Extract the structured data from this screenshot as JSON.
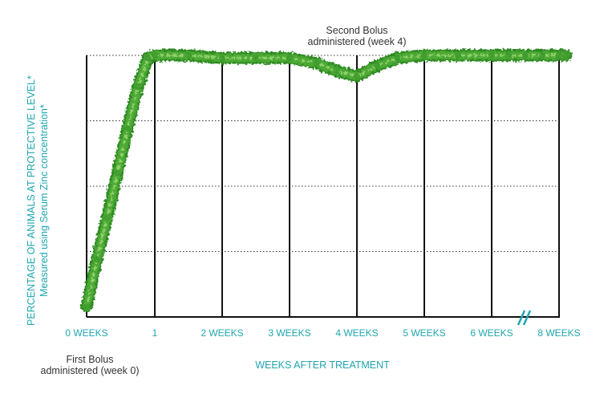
{
  "chart_data": {
    "type": "line",
    "x_tick_labels": [
      "0 WEEKS",
      "1",
      "2 WEEKS",
      "3 WEEKS",
      "4 WEEKS",
      "5 WEEKS",
      "6 WEEKS",
      "8 WEEKS"
    ],
    "x": [
      0,
      1,
      2,
      3,
      4,
      5,
      6,
      8
    ],
    "xlabel": "WEEKS AFTER TREATMENT",
    "ylabel_line1": "PERCENTAGE OF ANIMALS AT PROTECTIVE LEVEL*",
    "ylabel_line2": "Measured using Serum Zinc concentration*",
    "ylim": [
      0,
      100
    ],
    "y_gridlines": [
      25,
      50,
      75,
      100
    ],
    "grid": true,
    "axis_break_between": [
      6,
      8
    ],
    "series": [
      {
        "color": "#4da934",
        "points": [
          [
            0,
            4
          ],
          [
            0.15,
            22
          ],
          [
            0.3,
            38
          ],
          [
            0.45,
            55
          ],
          [
            0.6,
            72
          ],
          [
            0.75,
            88
          ],
          [
            0.9,
            99
          ],
          [
            1.0,
            100
          ],
          [
            1.5,
            100
          ],
          [
            2.0,
            99
          ],
          [
            2.5,
            99
          ],
          [
            3.0,
            99
          ],
          [
            3.4,
            97
          ],
          [
            3.7,
            94
          ],
          [
            4.0,
            92
          ],
          [
            4.3,
            96
          ],
          [
            4.6,
            99
          ],
          [
            5.0,
            100
          ],
          [
            5.5,
            100
          ],
          [
            6.0,
            100
          ],
          [
            6.5,
            100
          ],
          [
            7.0,
            100
          ],
          [
            7.5,
            100
          ],
          [
            8.0,
            100
          ],
          [
            8.2,
            100
          ]
        ]
      }
    ],
    "annotations": [
      {
        "lines": [
          "First Bolus",
          "administered (week 0)"
        ],
        "at_x": 0
      },
      {
        "lines": [
          "Second Bolus",
          "administered (week 4)"
        ],
        "at_x": 4
      }
    ]
  }
}
